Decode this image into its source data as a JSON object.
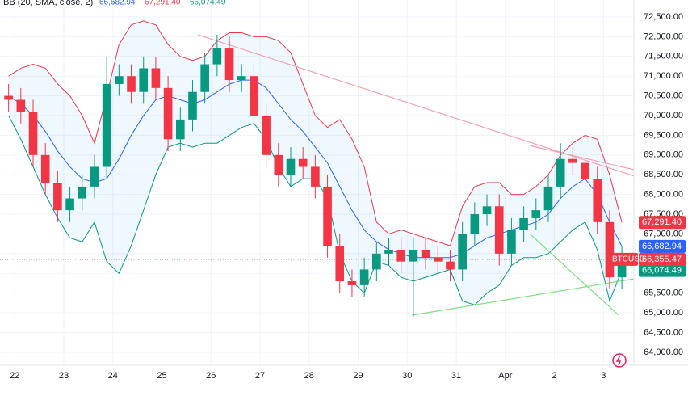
{
  "chart_data": {
    "type": "candlestick",
    "symbol": "BTCUSD",
    "indicator": "BB (20, SMA, close, 2)",
    "xlim": [
      -0.3,
      12.62
    ],
    "xticks": [
      {
        "value": 0,
        "label": "22"
      },
      {
        "value": 1,
        "label": "23"
      },
      {
        "value": 2,
        "label": "24"
      },
      {
        "value": 3,
        "label": "25"
      },
      {
        "value": 4,
        "label": "26"
      },
      {
        "value": 5,
        "label": "27"
      },
      {
        "value": 6,
        "label": "28"
      },
      {
        "value": 7,
        "label": "29"
      },
      {
        "value": 8,
        "label": "30"
      },
      {
        "value": 9,
        "label": "31"
      },
      {
        "value": 10,
        "label": "Apr"
      },
      {
        "value": 11,
        "label": "2"
      },
      {
        "value": 12,
        "label": "3"
      }
    ],
    "ylim": [
      63670,
      72930
    ],
    "yticks": [
      {
        "value": 64000,
        "label": "64,000.00"
      },
      {
        "value": 64500,
        "label": "64,500.00"
      },
      {
        "value": 65000,
        "label": "65,000.00"
      },
      {
        "value": 65500,
        "label": "65,500.00"
      },
      {
        "value": 66000,
        "label": "66,000.00"
      },
      {
        "value": 66500,
        "label": "66,500.00"
      },
      {
        "value": 67000,
        "label": "67,000.00"
      },
      {
        "value": 67500,
        "label": "67,500.00"
      },
      {
        "value": 68000,
        "label": "68,000.00"
      },
      {
        "value": 68500,
        "label": "68,500.00"
      },
      {
        "value": 69000,
        "label": "69,000.00"
      },
      {
        "value": 69500,
        "label": "69,500.00"
      },
      {
        "value": 70000,
        "label": "70,000.00"
      },
      {
        "value": 70500,
        "label": "70,500.00"
      },
      {
        "value": 71000,
        "label": "71,000.00"
      },
      {
        "value": 71500,
        "label": "71,500.00"
      },
      {
        "value": 72000,
        "label": "72,000.00"
      },
      {
        "value": 72500,
        "label": "72,500.00"
      }
    ],
    "grid": true,
    "up_color": "#089981",
    "down_color": "#f23645",
    "x": [
      -0.125,
      0.125,
      0.375,
      0.625,
      0.875,
      1.125,
      1.375,
      1.625,
      1.875,
      2.125,
      2.375,
      2.625,
      2.875,
      3.125,
      3.375,
      3.625,
      3.875,
      4.125,
      4.375,
      4.625,
      4.875,
      5.125,
      5.375,
      5.625,
      5.875,
      6.125,
      6.375,
      6.625,
      6.875,
      7.125,
      7.375,
      7.625,
      7.875,
      8.125,
      8.375,
      8.625,
      8.875,
      9.125,
      9.375,
      9.625,
      9.875,
      10.125,
      10.375,
      10.625,
      10.875,
      11.125,
      11.375,
      11.625,
      11.875,
      12.125,
      12.375
    ],
    "open": [
      70500,
      70400,
      70100,
      69000,
      68300,
      67600,
      67900,
      68200,
      68700,
      70800,
      71000,
      70600,
      71200,
      70700,
      69400,
      69900,
      70600,
      71300,
      71700,
      70900,
      71000,
      70000,
      69000,
      68500,
      68900,
      68700,
      68200,
      66700,
      65800,
      65700,
      66100,
      66500,
      66600,
      66300,
      66600,
      66400,
      66300,
      66100,
      67000,
      67500,
      67700,
      66500,
      67100,
      67400,
      67600,
      68200,
      68900,
      68800,
      68400,
      67300,
      65900
    ],
    "high": [
      70800,
      70700,
      70400,
      69300,
      68600,
      68200,
      68500,
      69000,
      71500,
      71300,
      71300,
      71500,
      71500,
      71000,
      70200,
      70900,
      71600,
      72050,
      72000,
      71300,
      71300,
      70300,
      69300,
      69200,
      69200,
      69000,
      68500,
      67000,
      66100,
      66400,
      66800,
      66900,
      66900,
      66900,
      66900,
      66700,
      66600,
      67300,
      67800,
      68000,
      68000,
      67400,
      67700,
      67900,
      68500,
      69300,
      69200,
      69100,
      68700,
      67600,
      66700
    ],
    "low": [
      70100,
      69800,
      68700,
      68000,
      67300,
      67300,
      67600,
      67900,
      68400,
      70500,
      70300,
      70300,
      70400,
      69100,
      69100,
      69600,
      70300,
      71000,
      70600,
      70600,
      69700,
      68700,
      68200,
      68200,
      68400,
      67900,
      66400,
      65500,
      65400,
      65400,
      65800,
      66200,
      66000,
      64900,
      66100,
      66000,
      65800,
      65800,
      66700,
      67200,
      66200,
      66200,
      66800,
      67100,
      67300,
      67900,
      68500,
      68100,
      67000,
      65600,
      65600
    ],
    "close": [
      70400,
      70100,
      69000,
      68300,
      67600,
      67900,
      68200,
      68700,
      70800,
      71000,
      70600,
      71200,
      70700,
      69400,
      69900,
      70600,
      71300,
      71700,
      70900,
      71000,
      70000,
      69000,
      68500,
      68900,
      68700,
      68200,
      66700,
      65800,
      65700,
      66100,
      66500,
      66600,
      66300,
      66600,
      66400,
      66300,
      66100,
      67000,
      67500,
      67700,
      66500,
      67100,
      67400,
      67600,
      68200,
      68900,
      68800,
      68400,
      67300,
      65900,
      66355.47
    ],
    "bands": [
      {
        "color": "#f23645",
        "values": [
          71000,
          71200,
          71300,
          71200,
          70800,
          70500,
          70000,
          69300,
          70500,
          71800,
          72300,
          72400,
          72300,
          71800,
          71500,
          71400,
          71500,
          71900,
          72100,
          72100,
          72000,
          72000,
          71900,
          71600,
          70800,
          70000,
          69700,
          69900,
          69400,
          68700,
          67300,
          67000,
          67100,
          67000,
          66900,
          66800,
          66700,
          67700,
          68200,
          68300,
          68300,
          68000,
          68000,
          68200,
          68500,
          69000,
          69300,
          69500,
          69400,
          68500,
          67291.4
        ],
        "last": {
          "value": 67291.4,
          "label": "67,291.40"
        }
      },
      {
        "color": "#2962ff",
        "values": [
          70500,
          70300,
          70000,
          69600,
          69100,
          68700,
          68400,
          68300,
          68400,
          68900,
          69500,
          70000,
          70400,
          70500,
          70400,
          70300,
          70400,
          70600,
          70800,
          70900,
          70900,
          70700,
          70300,
          69900,
          69600,
          69200,
          68800,
          68200,
          67600,
          67100,
          66800,
          66600,
          66500,
          66400,
          66400,
          66400,
          66400,
          66500,
          66700,
          66900,
          67000,
          67100,
          67200,
          67300,
          67500,
          67900,
          68200,
          68400,
          68000,
          67300,
          66682.94
        ],
        "last": {
          "value": 66682.94,
          "label": "66,682.94"
        }
      },
      {
        "color": "#089981",
        "values": [
          70000,
          69400,
          68700,
          68000,
          67400,
          66900,
          66800,
          67300,
          66300,
          66000,
          66700,
          67600,
          68500,
          69200,
          69300,
          69200,
          69300,
          69300,
          69500,
          69700,
          69800,
          69400,
          68700,
          68200,
          68400,
          68400,
          67900,
          66500,
          65800,
          65500,
          66300,
          66200,
          65900,
          65800,
          65900,
          66000,
          66100,
          65300,
          65200,
          65500,
          65700,
          66200,
          66400,
          66400,
          66500,
          66800,
          67100,
          67300,
          66600,
          65300,
          66074.49
        ],
        "last": {
          "value": 66074.49,
          "label": "66,074.49"
        }
      }
    ],
    "price": {
      "value": 66355.47,
      "label": "66,355.47"
    },
    "trendlines": [
      {
        "color": "#f7a1b0",
        "x": [
          3.73,
          12.62
        ],
        "y": [
          72050,
          68470
        ]
      },
      {
        "color": "#f7a1b0",
        "x": [
          10.5,
          12.62
        ],
        "y": [
          69240,
          68630
        ]
      },
      {
        "color": "#7ee07e",
        "x": [
          8.1,
          12.62
        ],
        "y": [
          64940,
          65860
        ]
      },
      {
        "color": "#7ee07e",
        "x": [
          10.5,
          12.3
        ],
        "y": [
          67000,
          64950
        ]
      }
    ]
  }
}
